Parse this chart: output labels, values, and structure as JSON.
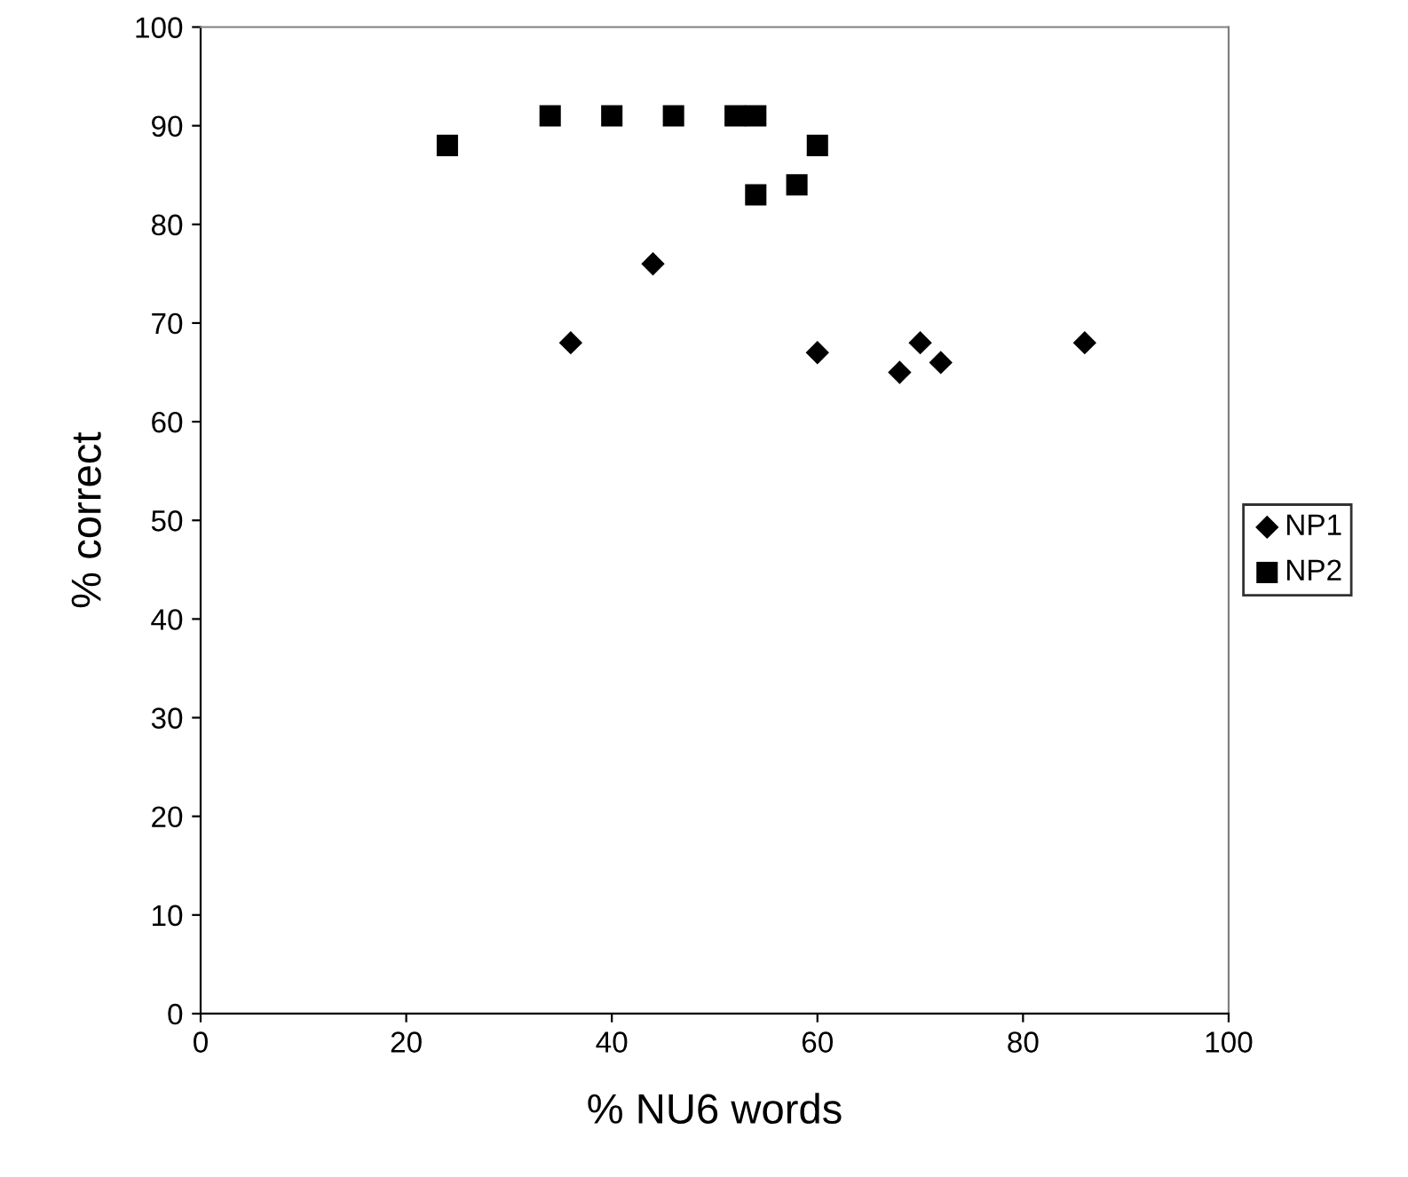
{
  "chart_data": {
    "type": "scatter",
    "xlabel": "% NU6 words",
    "ylabel": "% correct",
    "xlim": [
      0,
      100
    ],
    "xticks": [
      0,
      20,
      40,
      60,
      80,
      100
    ],
    "ylim": [
      0,
      100
    ],
    "yticks": [
      0,
      10,
      20,
      30,
      40,
      50,
      60,
      70,
      80,
      90,
      100
    ],
    "grid": false,
    "legend": "right",
    "series": [
      {
        "name": "NP1",
        "color": "#000000",
        "marker": "diamond",
        "x": [
          36,
          44,
          60,
          68,
          70,
          72,
          86
        ],
        "values": [
          68,
          76,
          67,
          65,
          68,
          66,
          68
        ]
      },
      {
        "name": "NP2",
        "color": "#000000",
        "marker": "square",
        "x": [
          24,
          34,
          40,
          46,
          52,
          54,
          54,
          58,
          60
        ],
        "values": [
          88,
          91,
          91,
          91,
          91,
          91,
          83,
          84,
          88
        ]
      }
    ]
  }
}
